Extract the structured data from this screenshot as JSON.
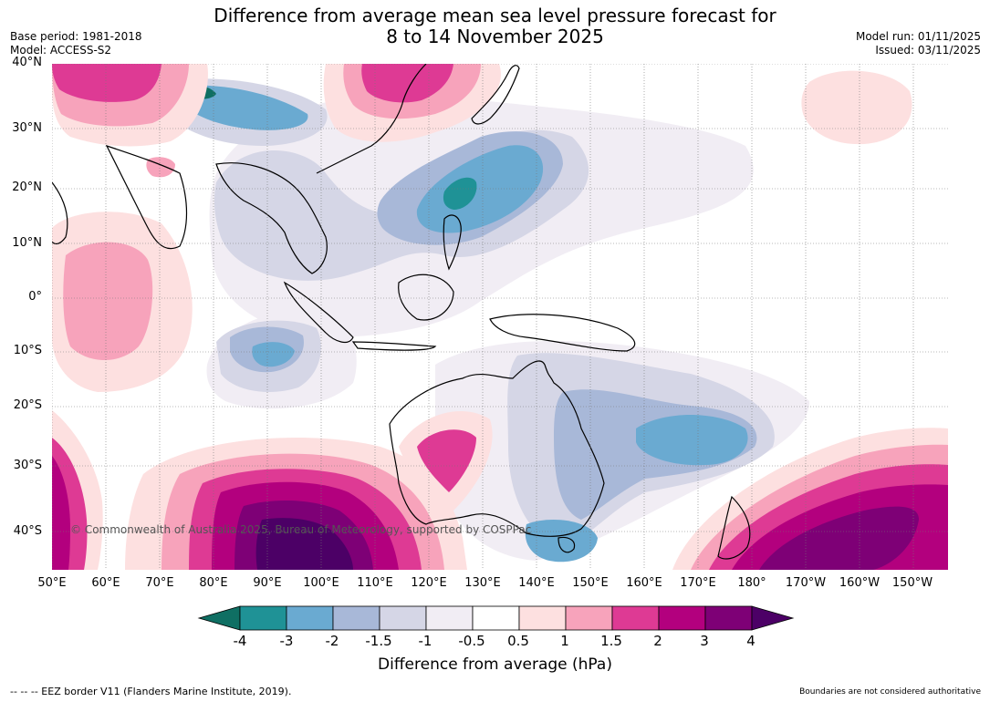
{
  "header": {
    "title_line1": "Difference from average mean sea level pressure forecast for",
    "title_line2": "8 to 14 November 2025",
    "base_period": "Base period: 1981-2018",
    "model": "Model: ACCESS-S2",
    "model_run": "Model run: 01/11/2025",
    "issued": "Issued: 03/11/2025"
  },
  "map": {
    "lat_ticks": [
      "40°N",
      "30°N",
      "20°N",
      "10°N",
      "0°",
      "10°S",
      "20°S",
      "30°S",
      "40°S"
    ],
    "lon_ticks": [
      "50°E",
      "60°E",
      "70°E",
      "80°E",
      "90°E",
      "100°E",
      "110°E",
      "120°E",
      "130°E",
      "140°E",
      "150°E",
      "160°E",
      "170°E",
      "180°",
      "170°W",
      "160°W",
      "150°W"
    ],
    "copyright": "© Commonwealth of Australia 2025, Bureau of Meteorology, supported by COSPPac"
  },
  "colorbar": {
    "labels": [
      "-4",
      "-3",
      "-2",
      "-1.5",
      "-1",
      "-0.5",
      "0.5",
      "1",
      "1.5",
      "2",
      "3",
      "4"
    ],
    "colors": [
      "#0f6f63",
      "#1f9296",
      "#6aaad1",
      "#a8b8d8",
      "#d5d6e6",
      "#f1edf4",
      "#ffffff",
      "#fde0e0",
      "#f7a3bb",
      "#de3a94",
      "#b3007e",
      "#7e0076",
      "#4c0066"
    ],
    "title": "Difference from average (hPa)"
  },
  "footer": {
    "eez_note": "--  --  -- EEZ border V11 (Flanders Marine Institute, 2019).",
    "disclaimer": "Boundaries are not considered authoritative"
  }
}
